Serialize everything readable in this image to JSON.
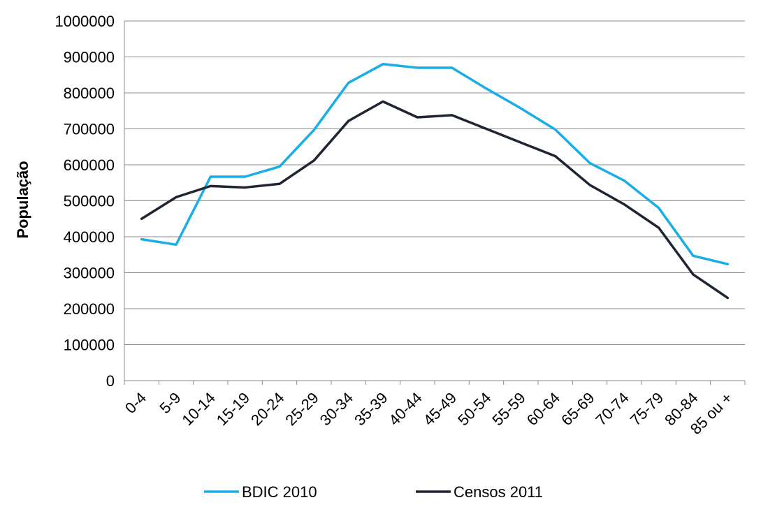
{
  "chart_data": {
    "type": "line",
    "title": "",
    "xlabel": "",
    "ylabel": "População",
    "ylim": [
      0,
      1000000
    ],
    "yticks": [
      "0",
      "100000",
      "200000",
      "300000",
      "400000",
      "500000",
      "600000",
      "700000",
      "800000",
      "900000",
      "1000000"
    ],
    "grid": true,
    "legend_position": "bottom",
    "categories": [
      "0-4",
      "5-9",
      "10-14",
      "15-19",
      "20-24",
      "25-29",
      "30-34",
      "35-39",
      "40-44",
      "45-49",
      "50-54",
      "55-59",
      "60-64",
      "65-69",
      "70-74",
      "75-79",
      "80-84",
      "85 ou +"
    ],
    "series": [
      {
        "name": "BDIC 2010",
        "color": "#1aaee6",
        "values": [
          393000,
          378000,
          567000,
          567000,
          595000,
          697000,
          828000,
          880000,
          870000,
          870000,
          812000,
          757000,
          698000,
          605000,
          556000,
          480000,
          347000,
          324000
        ]
      },
      {
        "name": "Censos 2011",
        "color": "#1f2533",
        "values": [
          450000,
          510000,
          541000,
          537000,
          547000,
          612000,
          722000,
          776000,
          732000,
          738000,
          700000,
          662000,
          624000,
          544000,
          490000,
          425000,
          295000,
          230000
        ]
      }
    ]
  }
}
